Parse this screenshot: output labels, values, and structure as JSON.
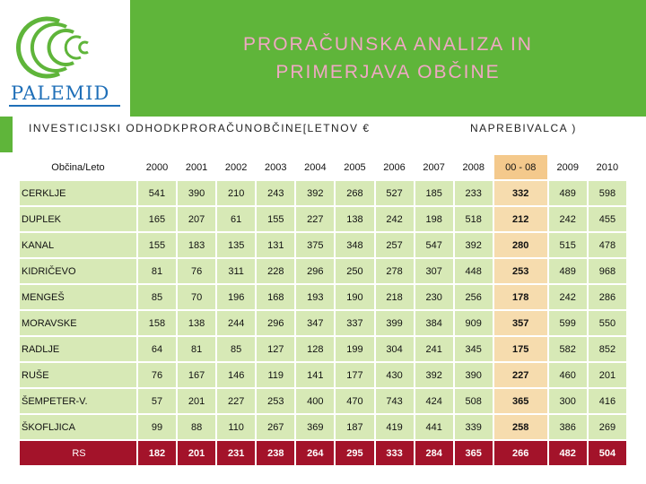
{
  "logo": {
    "text": "PALEMID"
  },
  "title": {
    "line1": "PRORAČUNSKA ANALIZA IN",
    "line2": "PRIMERJAVA OBČINE"
  },
  "subtitle": {
    "left": "INVESTICIJSKI ODHODKPRORAČUNOBČINE[LETNOV €",
    "right": "NAPREBIVALCA )"
  },
  "table": {
    "headers": [
      "Občina/Leto",
      "2000",
      "2001",
      "2002",
      "2003",
      "2004",
      "2005",
      "2006",
      "2007",
      "2008",
      "00 - 08",
      "2009",
      "2010"
    ],
    "rows": [
      [
        "CERKLJE",
        "541",
        "390",
        "210",
        "243",
        "392",
        "268",
        "527",
        "185",
        "233",
        "332",
        "489",
        "598"
      ],
      [
        "DUPLEK",
        "165",
        "207",
        "61",
        "155",
        "227",
        "138",
        "242",
        "198",
        "518",
        "212",
        "242",
        "455"
      ],
      [
        "KANAL",
        "155",
        "183",
        "135",
        "131",
        "375",
        "348",
        "257",
        "547",
        "392",
        "280",
        "515",
        "478"
      ],
      [
        "KIDRIČEVO",
        "81",
        "76",
        "311",
        "228",
        "296",
        "250",
        "278",
        "307",
        "448",
        "253",
        "489",
        "968"
      ],
      [
        "MENGEŠ",
        "85",
        "70",
        "196",
        "168",
        "193",
        "190",
        "218",
        "230",
        "256",
        "178",
        "242",
        "286"
      ],
      [
        "MORAVSKE",
        "158",
        "138",
        "244",
        "296",
        "347",
        "337",
        "399",
        "384",
        "909",
        "357",
        "599",
        "550"
      ],
      [
        "RADLJE",
        "64",
        "81",
        "85",
        "127",
        "128",
        "199",
        "304",
        "241",
        "345",
        "175",
        "582",
        "852"
      ],
      [
        "RUŠE",
        "76",
        "167",
        "146",
        "119",
        "141",
        "177",
        "430",
        "392",
        "390",
        "227",
        "460",
        "201"
      ],
      [
        "ŠEMPETER-V.",
        "57",
        "201",
        "227",
        "253",
        "400",
        "470",
        "743",
        "424",
        "508",
        "365",
        "300",
        "416"
      ],
      [
        "ŠKOFLJICA",
        "99",
        "88",
        "110",
        "267",
        "369",
        "187",
        "419",
        "441",
        "339",
        "258",
        "386",
        "269"
      ],
      [
        "RS",
        "182",
        "201",
        "231",
        "238",
        "264",
        "295",
        "333",
        "284",
        "365",
        "266",
        "482",
        "504"
      ]
    ]
  },
  "colors": {
    "header_green": "#5fb53a",
    "cell_green": "#d7e9b6",
    "highlight_orange": "#f6dcae",
    "rs_red": "#a3132a",
    "title_pink": "#f0a8c4",
    "logo_blue": "#1f6fb8"
  }
}
